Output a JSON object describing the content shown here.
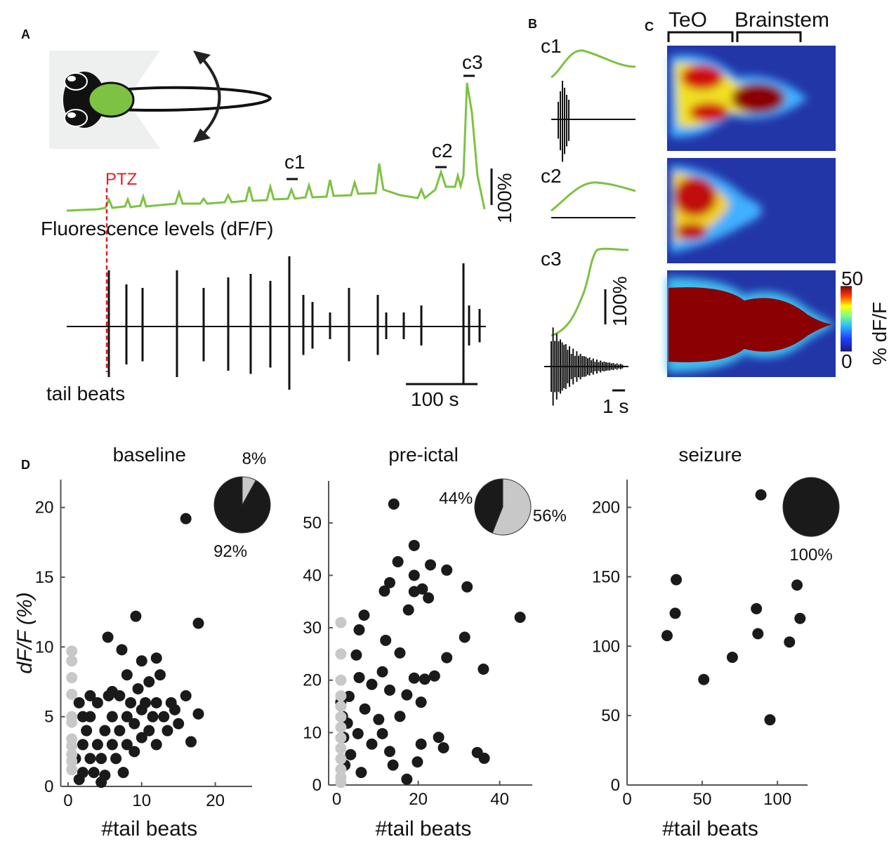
{
  "panel_labels": {
    "a": "A",
    "b": "B",
    "c": "C",
    "d": "D"
  },
  "panel_a": {
    "stimulus": "PTZ",
    "fluorescence_label": "Fluorescence levels (dF/F)",
    "events": [
      "c1",
      "c2",
      "c3"
    ],
    "scale_dff": "100%",
    "tail_label": "tail beats",
    "scale_time": "100 s"
  },
  "panel_b": {
    "events": [
      "c1",
      "c2",
      "c3"
    ],
    "scale_dff": "100%",
    "scale_time": "1 s"
  },
  "panel_c": {
    "regions": [
      "TeO",
      "Brainstem"
    ],
    "colorbar_label": "% dF/F",
    "colorbar_ticks": [
      0,
      50
    ]
  },
  "chart_data": [
    {
      "type": "scatter",
      "title": "baseline",
      "xlabel": "#tail beats",
      "ylabel": "dF/F (%)",
      "xlim": [
        -1,
        25
      ],
      "ylim": [
        0,
        22
      ],
      "xticks": [
        0,
        10,
        20
      ],
      "yticks": [
        0,
        5,
        10,
        15,
        20
      ],
      "series": [
        {
          "color": "#1a1a1a",
          "x": [
            16,
            9.2,
            17.7,
            5.4,
            7.3,
            12,
            1,
            1.5,
            2,
            2,
            2.5,
            3,
            3,
            3.5,
            4,
            4,
            4.5,
            5,
            5,
            5.5,
            6,
            6,
            6.5,
            7,
            7,
            7.5,
            8,
            8,
            8.5,
            9,
            9,
            9.5,
            10,
            10,
            10.5,
            11,
            11,
            11.5,
            12,
            12,
            12.5,
            13,
            13.5,
            14,
            14.5,
            15,
            16,
            16.7,
            17.7,
            1.5,
            2,
            3,
            6,
            4.5,
            8,
            10
          ],
          "values": [
            19.2,
            12.2,
            11.7,
            10.7,
            9.8,
            9.2,
            2,
            0.5,
            1,
            3,
            4,
            2,
            5,
            1,
            3,
            6,
            2,
            4,
            0.8,
            6.5,
            3,
            5,
            2,
            4,
            6.5,
            1,
            3,
            5,
            6,
            2.5,
            4.5,
            7,
            3.5,
            5.5,
            6,
            4,
            7.5,
            5,
            3,
            6,
            8,
            5,
            4,
            6,
            5.5,
            4.5,
            6.5,
            3.2,
            5.2,
            6,
            5,
            6.5,
            6.8,
            0.3,
            8,
            9
          ]
        },
        {
          "color": "#c8c8c8",
          "x": [
            0.5,
            0.5,
            0.5,
            0.5,
            0.5,
            0.5,
            0.5,
            0.5,
            0.5,
            0.5,
            0.5
          ],
          "values": [
            9.7,
            9,
            7.8,
            6.6,
            5,
            4.6,
            3.4,
            2.9,
            2.3,
            1.8,
            1.2
          ]
        }
      ],
      "pie": {
        "values": [
          92,
          8
        ],
        "value_labels": [
          "92%",
          "8%"
        ],
        "colors": [
          "#1a1a1a",
          "#c8c8c8"
        ]
      }
    },
    {
      "type": "scatter",
      "title": "pre-ictal",
      "xlabel": "#tail beats",
      "xlim": [
        -2,
        48
      ],
      "ylim": [
        0,
        58
      ],
      "xticks": [
        0,
        20,
        40
      ],
      "yticks": [
        0,
        10,
        20,
        30,
        40,
        50
      ],
      "series": [
        {
          "color": "#1a1a1a",
          "x": [
            14,
            19,
            15,
            23,
            13,
            19,
            27,
            32,
            45,
            21,
            22.5,
            19,
            17.6,
            11.7,
            6.7,
            5.5,
            12,
            31.4,
            15.5,
            27,
            4.8,
            11.2,
            36,
            19,
            21.6,
            24,
            5.5,
            8.6,
            13,
            17.2,
            3,
            20.7,
            6.9,
            10.3,
            15.5,
            2.6,
            5.2,
            11.2,
            25,
            26.2,
            20.7,
            34.5,
            36.2,
            19.8,
            13.8,
            6,
            3.4,
            1.7,
            2,
            8.6,
            17.2,
            1,
            1.4,
            13
          ],
          "values": [
            53.6,
            45.7,
            42.6,
            42,
            38.6,
            40,
            41,
            37.8,
            32,
            37.4,
            35.7,
            36.9,
            33.4,
            37,
            32.4,
            29.6,
            27.6,
            28.2,
            25.2,
            24.3,
            24.8,
            21.6,
            22.1,
            20.4,
            20.2,
            20.8,
            20.5,
            19.2,
            18.1,
            17.2,
            16.9,
            15.8,
            14.5,
            12.5,
            13.1,
            11.8,
            9.8,
            9.8,
            9.1,
            7.1,
            7.8,
            6.2,
            5.1,
            4.4,
            3.8,
            2.4,
            5.8,
            9.1,
            3.8,
            7.8,
            1.1,
            15.8,
            13.1,
            6.4
          ]
        },
        {
          "color": "#c8c8c8",
          "x": [
            1,
            1,
            1,
            1,
            1,
            1,
            1,
            1,
            1,
            1,
            1,
            1,
            1
          ],
          "values": [
            31,
            25,
            20,
            17,
            15,
            13,
            11,
            9,
            7,
            5,
            3,
            1.5,
            0.5
          ]
        }
      ],
      "pie": {
        "values": [
          44,
          56
        ],
        "value_labels": [
          "44%",
          "56%"
        ],
        "colors": [
          "#1a1a1a",
          "#c8c8c8"
        ]
      }
    },
    {
      "type": "scatter",
      "title": "seizure",
      "xlabel": "#tail beats",
      "xlim": [
        0,
        120
      ],
      "ylim": [
        0,
        220
      ],
      "xticks": [
        0,
        50,
        100
      ],
      "yticks": [
        0,
        50,
        100,
        150,
        200
      ],
      "series": [
        {
          "color": "#1a1a1a",
          "x": [
            26.6,
            32.7,
            32,
            51,
            70,
            87,
            86,
            95,
            108,
            113,
            115,
            89
          ],
          "values": [
            107.6,
            147.9,
            123.7,
            76,
            92,
            109,
            127,
            47,
            103,
            144,
            120,
            209
          ]
        }
      ],
      "pie": {
        "values": [
          100
        ],
        "value_labels": [
          "100%"
        ],
        "colors": [
          "#1a1a1a"
        ]
      }
    }
  ]
}
